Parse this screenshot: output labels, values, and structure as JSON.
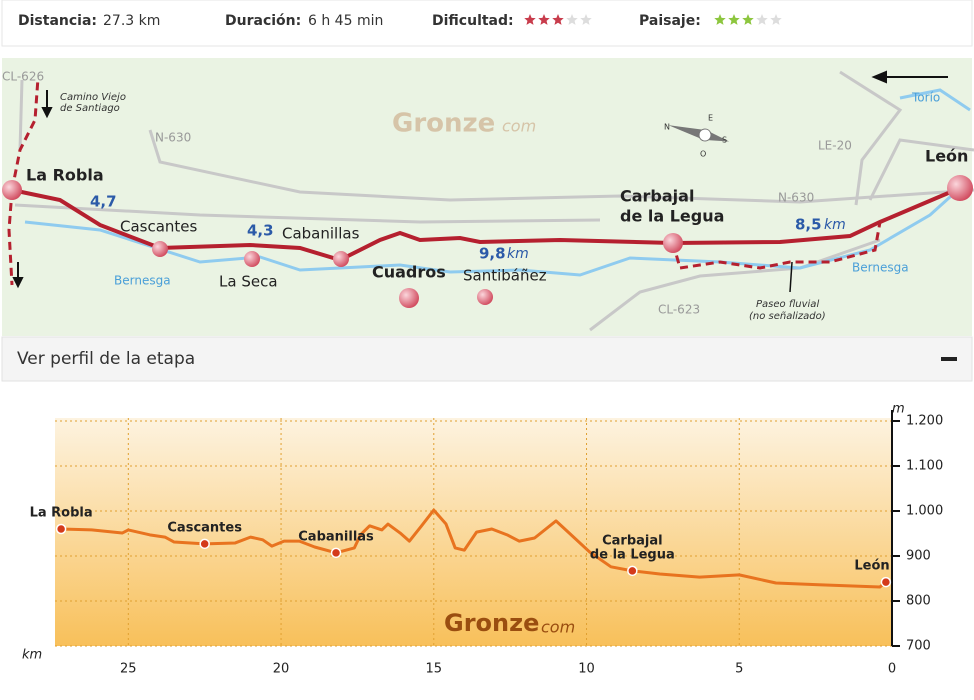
{
  "stats": [
    {
      "label": "Distancia:",
      "value": "27.3 km"
    },
    {
      "label": "Duración:",
      "value": "6 h 45 min"
    },
    {
      "label": "Dificultad:",
      "rating": 3,
      "max": 5,
      "color": "#c83c4c"
    },
    {
      "label": "Paisaje:",
      "rating": 3,
      "max": 5,
      "color": "#8dc63f"
    }
  ],
  "map": {
    "brand": "Gronze",
    "brand_suffix": "com",
    "roads": [
      "CL-626",
      "N-630",
      "N-630",
      "LE-20",
      "CL-623"
    ],
    "rivers": [
      "Bernesga",
      "Bernesga",
      "Torío"
    ],
    "notes": [
      "Camino Viejo",
      "de Santiago",
      "Paseo fluvial",
      "(no señalizado)"
    ],
    "towns": [
      "La Robla",
      "Cascantes",
      "La Seca",
      "Cabanillas",
      "Cuadros",
      "Santibáñez",
      "Carbajal",
      "de la Legua",
      "León"
    ],
    "distances": [
      "4,7",
      "4,3",
      "9,8",
      "8,5"
    ],
    "unit": "km",
    "compass": [
      "N",
      "E",
      "S",
      "O"
    ]
  },
  "profile": {
    "title": "Ver perfil de la etapa"
  },
  "chart_data": {
    "type": "line",
    "xlabel": "km",
    "ylabel": "m",
    "color": "#e8731f",
    "grid": true,
    "xlim": [
      27.4,
      0
    ],
    "ylim": [
      700,
      1200
    ],
    "xticks": [
      0,
      5,
      10,
      15,
      20,
      25
    ],
    "yticks": [
      700,
      800,
      900,
      {
        "value": 1000,
        "label": "1.000"
      },
      {
        "value": 1100,
        "label": "1.100"
      },
      {
        "value": 1200,
        "label": "1.200"
      }
    ],
    "x": [
      27.2,
      26.2,
      25.2,
      25.0,
      24.3,
      23.8,
      23.5,
      22.5,
      21.5,
      21.0,
      20.6,
      20.3,
      19.9,
      19.4,
      18.9,
      18.2,
      17.6,
      17.4,
      17.1,
      16.7,
      16.5,
      16.1,
      15.8,
      15.4,
      15.0,
      14.6,
      14.3,
      14.0,
      13.6,
      13.1,
      12.6,
      12.2,
      11.7,
      11.0,
      10.6,
      9.9,
      9.2,
      8.5,
      7.6,
      6.3,
      5.0,
      3.8,
      2.4,
      0.4,
      0.2
    ],
    "values": [
      960,
      958,
      951,
      958,
      947,
      942,
      931,
      927,
      929,
      942,
      936,
      922,
      933,
      933,
      920,
      907,
      918,
      947,
      967,
      958,
      971,
      951,
      933,
      967,
      1002,
      971,
      918,
      913,
      953,
      960,
      947,
      933,
      940,
      978,
      953,
      909,
      876,
      867,
      860,
      853,
      858,
      840,
      836,
      831,
      842
    ],
    "points": [
      {
        "label": [
          "La Robla"
        ],
        "x": 27.2,
        "y": 960
      },
      {
        "label": [
          "Cascantes"
        ],
        "x": 22.5,
        "y": 927
      },
      {
        "label": [
          "Cabanillas"
        ],
        "x": 18.2,
        "y": 907
      },
      {
        "label": [
          "Carbajal",
          "de la Legua"
        ],
        "x": 8.5,
        "y": 867
      },
      {
        "label": [
          "León"
        ],
        "x": 0.2,
        "y": 842
      }
    ],
    "watermark": {
      "main": "Gronze",
      "suffix": "com"
    }
  }
}
